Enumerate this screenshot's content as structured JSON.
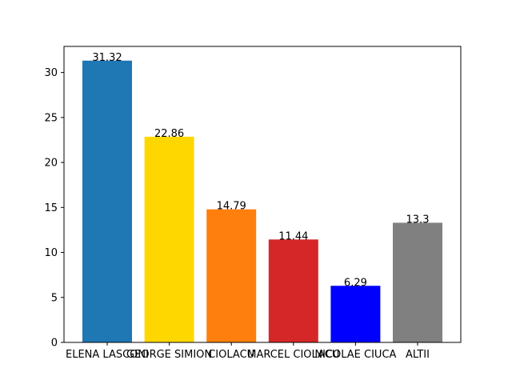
{
  "chart_data": {
    "type": "bar",
    "title": "",
    "xlabel": "",
    "ylabel": "",
    "categories": [
      "ELENA LASCONI",
      "GEORGE SIMION",
      "CIOLACU",
      "MARCEL CIOLACU",
      "NICOLAE CIUCA",
      "ALTII"
    ],
    "values": [
      31.32,
      22.86,
      14.79,
      11.44,
      6.29,
      13.3
    ],
    "data_labels": [
      "31.32",
      "22.86",
      "14.79",
      "11.44",
      "6.29",
      "13.3"
    ],
    "colors": [
      "#1f77b4",
      "#ffd700",
      "#ff7f0e",
      "#d62728",
      "#0000ff",
      "#808080"
    ],
    "ylim": [
      0,
      32.9
    ],
    "yticks": [
      0,
      5,
      10,
      15,
      20,
      25,
      30
    ],
    "grid": false,
    "legend": "none"
  }
}
